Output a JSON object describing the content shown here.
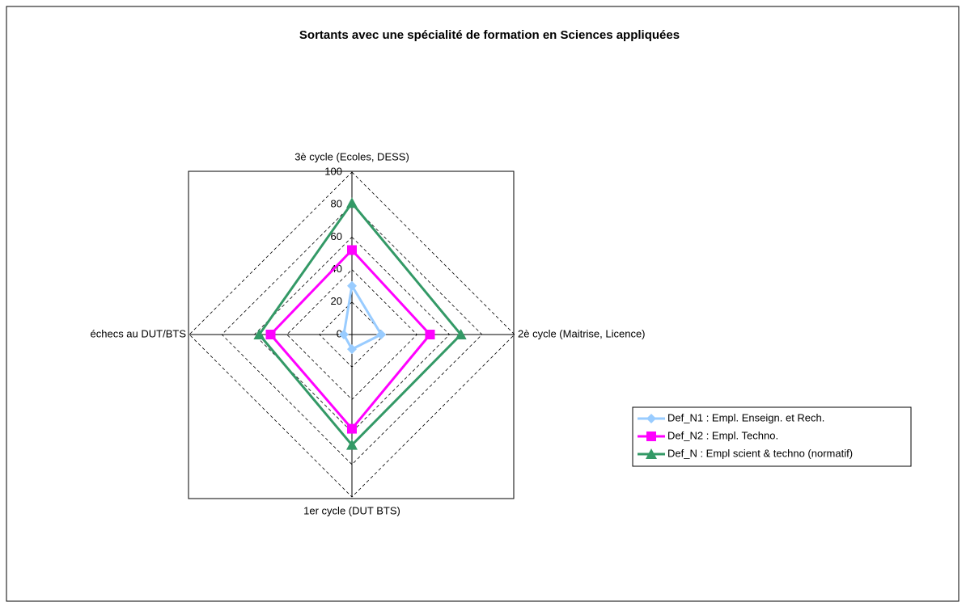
{
  "chart_data": {
    "type": "radar",
    "title": "Sortants avec une spécialité de formation en Sciences appliquées",
    "categories": [
      "3è cycle (Ecoles, DESS)",
      "2è cycle (Maitrise, Licence)",
      "1er cycle (DUT BTS)",
      "échecs au DUT/BTS"
    ],
    "series": [
      {
        "name": "Def_N1 : Empl. Enseign. et Rech.",
        "color": "#99ccff",
        "marker": "diamond",
        "values": [
          30,
          18,
          9,
          5
        ]
      },
      {
        "name": "Def_N2 : Empl. Techno.",
        "color": "#ff00ff",
        "marker": "square",
        "values": [
          52,
          48,
          58,
          50
        ]
      },
      {
        "name": "Def_N : Empl scient & techno (normatif)",
        "color": "#339966",
        "marker": "triangle",
        "values": [
          81,
          67,
          68,
          57
        ]
      }
    ],
    "ylim": [
      0,
      100
    ],
    "yticks": [
      0,
      20,
      40,
      60,
      80,
      100
    ],
    "grid": true,
    "legend": "right"
  }
}
